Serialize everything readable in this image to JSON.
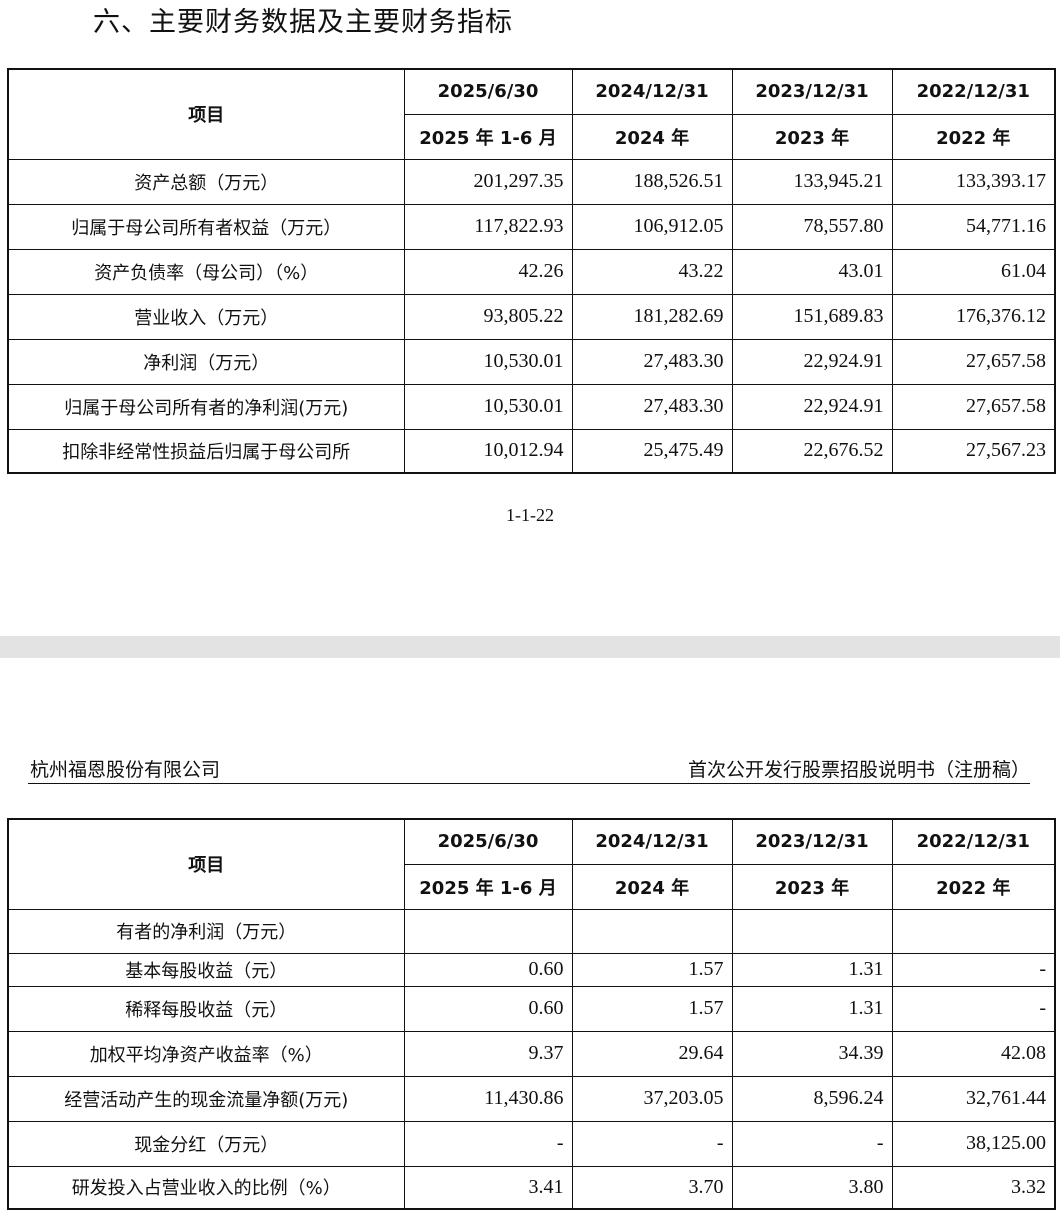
{
  "section_title": "六、主要财务数据及主要财务指标",
  "page_number": "1-1-22",
  "running_header": {
    "company": "杭州福恩股份有限公司",
    "document": "首次公开发行股票招股说明书（注册稿）"
  },
  "table_header": {
    "item_label": "项目",
    "dates": [
      "2025/6/30",
      "2024/12/31",
      "2023/12/31",
      "2022/12/31"
    ],
    "periods": [
      "2025 年 1-6 月",
      "2024 年",
      "2023 年",
      "2022 年"
    ]
  },
  "table1_rows": [
    {
      "label": "资产总额（万元）",
      "values": [
        "201,297.35",
        "188,526.51",
        "133,945.21",
        "133,393.17"
      ]
    },
    {
      "label": "归属于母公司所有者权益（万元）",
      "values": [
        "117,822.93",
        "106,912.05",
        "78,557.80",
        "54,771.16"
      ]
    },
    {
      "label": "资产负债率（母公司）（%）",
      "values": [
        "42.26",
        "43.22",
        "43.01",
        "61.04"
      ]
    },
    {
      "label": "营业收入（万元）",
      "values": [
        "93,805.22",
        "181,282.69",
        "151,689.83",
        "176,376.12"
      ]
    },
    {
      "label": "净利润（万元）",
      "values": [
        "10,530.01",
        "27,483.30",
        "22,924.91",
        "27,657.58"
      ]
    },
    {
      "label": "归属于母公司所有者的净利润(万元)",
      "values": [
        "10,530.01",
        "27,483.30",
        "22,924.91",
        "27,657.58"
      ]
    },
    {
      "label": "扣除非经常性损益后归属于母公司所",
      "values": [
        "10,012.94",
        "25,475.49",
        "22,676.52",
        "27,567.23"
      ]
    }
  ],
  "table2_rows": [
    {
      "label": "有者的净利润（万元）",
      "values": [
        "",
        "",
        "",
        ""
      ]
    },
    {
      "label": "基本每股收益（元）",
      "values": [
        "0.60",
        "1.57",
        "1.31",
        "-"
      ]
    },
    {
      "label": "稀释每股收益（元）",
      "values": [
        "0.60",
        "1.57",
        "1.31",
        "-"
      ]
    },
    {
      "label": "加权平均净资产收益率（%）",
      "values": [
        "9.37",
        "29.64",
        "34.39",
        "42.08"
      ]
    },
    {
      "label": "经营活动产生的现金流量净额(万元)",
      "values": [
        "11,430.86",
        "37,203.05",
        "8,596.24",
        "32,761.44"
      ]
    },
    {
      "label": "现金分红（万元）",
      "values": [
        "-",
        "-",
        "-",
        "38,125.00"
      ]
    },
    {
      "label": "研发投入占营业收入的比例（%）",
      "values": [
        "3.41",
        "3.70",
        "3.80",
        "3.32"
      ]
    }
  ]
}
